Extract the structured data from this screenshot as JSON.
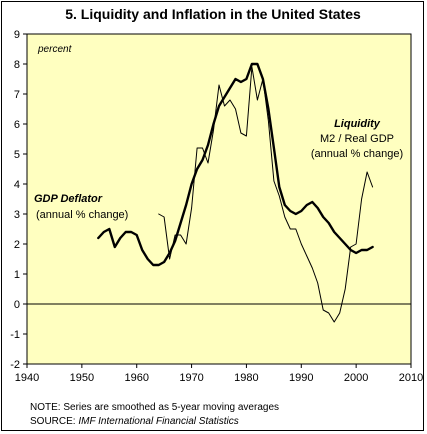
{
  "chart_data": {
    "type": "line",
    "title": "5. Liquidity and Inflation in the United States",
    "unit_label": "percent",
    "xlim": [
      1940,
      2010
    ],
    "ylim": [
      -2,
      9
    ],
    "x_ticks": [
      1940,
      1950,
      1960,
      1970,
      1980,
      1990,
      2000,
      2010
    ],
    "y_ticks": [
      -2,
      -1,
      0,
      1,
      2,
      3,
      4,
      5,
      6,
      7,
      8,
      9
    ],
    "grid": false,
    "zero_line": true,
    "series": [
      {
        "name": "GDP Deflator",
        "subtitle": "(annual % change)",
        "x": [
          1953,
          1954,
          1955,
          1956,
          1957,
          1958,
          1959,
          1960,
          1961,
          1962,
          1963,
          1964,
          1965,
          1966,
          1967,
          1968,
          1969,
          1970,
          1971,
          1972,
          1973,
          1974,
          1975,
          1976,
          1977,
          1978,
          1979,
          1980,
          1981,
          1982,
          1983,
          1984,
          1985,
          1986,
          1987,
          1988,
          1989,
          1990,
          1991,
          1992,
          1993,
          1994,
          1995,
          1996,
          1997,
          1998,
          1999,
          2000,
          2001,
          2002,
          2003
        ],
        "values": [
          2.2,
          2.4,
          2.5,
          1.9,
          2.2,
          2.4,
          2.4,
          2.3,
          1.8,
          1.5,
          1.3,
          1.3,
          1.4,
          1.7,
          2.1,
          2.7,
          3.3,
          4.0,
          4.5,
          4.8,
          5.3,
          6.0,
          6.6,
          6.9,
          7.2,
          7.5,
          7.4,
          7.5,
          8.0,
          8.0,
          7.5,
          6.5,
          5.2,
          3.9,
          3.3,
          3.1,
          3.0,
          3.1,
          3.3,
          3.4,
          3.2,
          2.9,
          2.7,
          2.4,
          2.2,
          2.0,
          1.8,
          1.7,
          1.8,
          1.8,
          1.9
        ],
        "line_style": "thick"
      },
      {
        "name": "Liquidity",
        "subtitle_lines": [
          "M2 / Real GDP",
          "(annual % change)"
        ],
        "x": [
          1964,
          1965,
          1966,
          1967,
          1968,
          1969,
          1970,
          1971,
          1972,
          1973,
          1974,
          1975,
          1976,
          1977,
          1978,
          1979,
          1980,
          1981,
          1982,
          1983,
          1984,
          1985,
          1986,
          1987,
          1988,
          1989,
          1990,
          1991,
          1992,
          1993,
          1994,
          1995,
          1996,
          1997,
          1998,
          1999,
          2000,
          2001,
          2002,
          2003
        ],
        "values": [
          3.0,
          2.9,
          1.5,
          2.3,
          2.3,
          2.0,
          3.2,
          5.2,
          5.2,
          4.7,
          5.8,
          7.3,
          6.6,
          6.8,
          6.5,
          5.7,
          5.6,
          7.9,
          6.8,
          7.5,
          6.1,
          4.1,
          3.6,
          2.9,
          2.5,
          2.5,
          2.0,
          1.6,
          1.2,
          0.7,
          -0.2,
          -0.3,
          -0.6,
          -0.3,
          0.5,
          1.9,
          2.0,
          3.5,
          4.4,
          3.9
        ],
        "line_style": "thin"
      }
    ]
  },
  "notes": {
    "note": "NOTE: Series are smoothed as 5-year moving averages",
    "source_prefix": "SOURCE: ",
    "source_name": "IMF International Financial Statistics"
  }
}
